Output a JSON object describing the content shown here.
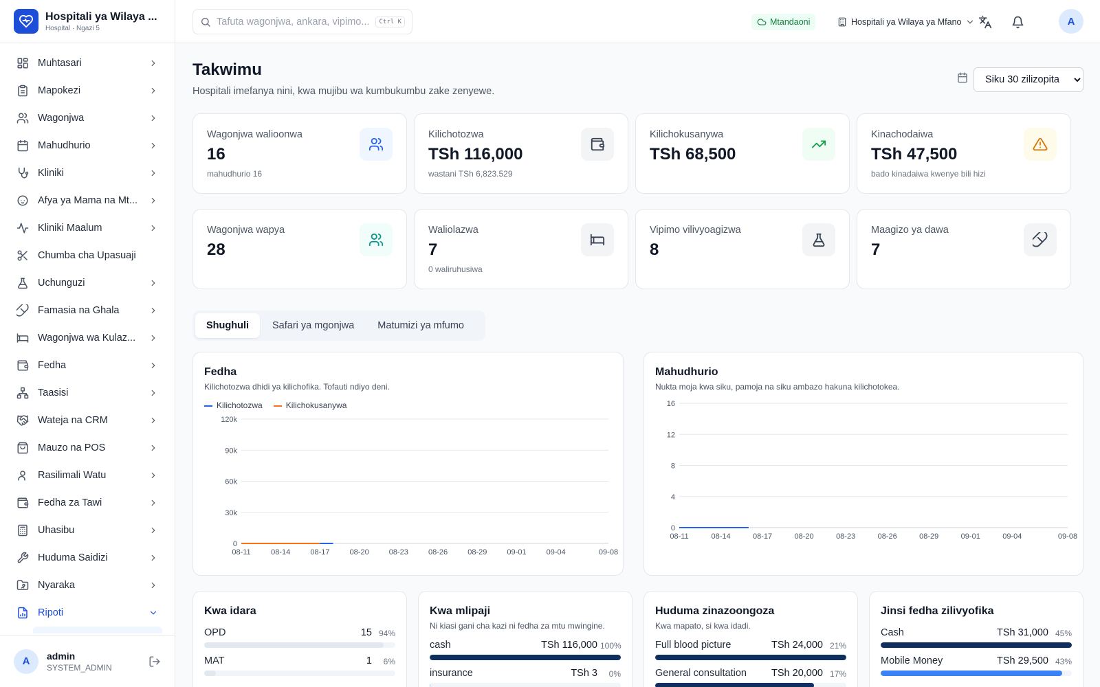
{
  "brand": {
    "name": "Hospitali ya Wilaya ...",
    "sub": "Hospital · Ngazi 5"
  },
  "sidebar": {
    "items": [
      {
        "label": "Muhtasari",
        "icon": "dashboard-icon",
        "chevron": true
      },
      {
        "label": "Mapokezi",
        "icon": "clipboard-icon",
        "chevron": true
      },
      {
        "label": "Wagonjwa",
        "icon": "users-icon",
        "chevron": true
      },
      {
        "label": "Mahudhurio",
        "icon": "calendar-icon",
        "chevron": true
      },
      {
        "label": "Kliniki",
        "icon": "stethoscope-icon",
        "chevron": true
      },
      {
        "label": "Afya ya Mama na Mt...",
        "icon": "baby-icon",
        "chevron": true
      },
      {
        "label": "Kliniki Maalum",
        "icon": "activity-icon",
        "chevron": true
      },
      {
        "label": "Chumba cha Upasuaji",
        "icon": "scissors-icon",
        "chevron": false
      },
      {
        "label": "Uchunguzi",
        "icon": "flask-icon",
        "chevron": true
      },
      {
        "label": "Famasia na Ghala",
        "icon": "pill-icon",
        "chevron": true
      },
      {
        "label": "Wagonjwa wa Kulaz...",
        "icon": "bed-icon",
        "chevron": true
      },
      {
        "label": "Fedha",
        "icon": "wallet-icon",
        "chevron": true
      },
      {
        "label": "Taasisi",
        "icon": "network-icon",
        "chevron": true
      },
      {
        "label": "Wateja na CRM",
        "icon": "handshake-icon",
        "chevron": true
      },
      {
        "label": "Mauzo na POS",
        "icon": "shopping-bag-icon",
        "chevron": true
      },
      {
        "label": "Rasilimali Watu",
        "icon": "user-icon",
        "chevron": true
      },
      {
        "label": "Fedha za Tawi",
        "icon": "wallet-icon",
        "chevron": true
      },
      {
        "label": "Uhasibu",
        "icon": "calculator-icon",
        "chevron": true
      },
      {
        "label": "Huduma Saidizi",
        "icon": "wrench-icon",
        "chevron": true
      },
      {
        "label": "Nyaraka",
        "icon": "folder-icon",
        "chevron": true
      },
      {
        "label": "Ripoti",
        "icon": "report-icon",
        "chevron": true,
        "active": true
      }
    ]
  },
  "user": {
    "initial": "A",
    "name": "admin",
    "role": "SYSTEM_ADMIN"
  },
  "topbar": {
    "search_placeholder": "Tafuta wagonjwa, ankara, vipimo...",
    "shortcut": "Ctrl K",
    "status": "Mtandaoni",
    "facility": "Hospitali ya Wilaya ya Mfano",
    "avatar_initial": "A"
  },
  "page": {
    "title": "Takwimu",
    "subtitle": "Hospitali imefanya nini, kwa mujibu wa kumbukumbu zake zenyewe.",
    "range": "Siku 30 zilizopita",
    "range_options": [
      "Siku 30 zilizopita"
    ]
  },
  "stats": [
    {
      "label": "Wagonjwa walioonwa",
      "value": "16",
      "sub": "mahudhurio 16",
      "icon": "users-icon",
      "color": "#2563eb",
      "bg": "#eff6ff"
    },
    {
      "label": "Kilichotozwa",
      "value": "TSh 116,000",
      "sub": "wastani TSh 6,823.529",
      "icon": "wallet-icon",
      "color": "#374151",
      "bg": "#f3f4f6"
    },
    {
      "label": "Kilichokusanywa",
      "value": "TSh 68,500",
      "sub": "",
      "icon": "trending-up-icon",
      "color": "#16a34a",
      "bg": "#f0fdf4"
    },
    {
      "label": "Kinachodaiwa",
      "value": "TSh 47,500",
      "sub": "bado kinadaiwa kwenye bili hizi",
      "icon": "alert-triangle-icon",
      "color": "#d97706",
      "bg": "#fffbeb"
    },
    {
      "label": "Wagonjwa wapya",
      "value": "28",
      "sub": "",
      "icon": "users-icon",
      "color": "#0d9488",
      "bg": "#f0fdfa"
    },
    {
      "label": "Waliolazwa",
      "value": "7",
      "sub": "0 waliruhusiwa",
      "icon": "bed-icon",
      "color": "#374151",
      "bg": "#f3f4f6"
    },
    {
      "label": "Vipimo vilivyoagizwa",
      "value": "8",
      "sub": "",
      "icon": "flask-icon",
      "color": "#374151",
      "bg": "#f3f4f6"
    },
    {
      "label": "Maagizo ya dawa",
      "value": "7",
      "sub": "",
      "icon": "pill-icon",
      "color": "#374151",
      "bg": "#f3f4f6"
    }
  ],
  "tabs": [
    "Shughuli",
    "Safari ya mgonjwa",
    "Matumizi ya mfumo"
  ],
  "finance_card": {
    "title": "Fedha",
    "desc": "Kilichotozwa dhidi ya kilichofika. Tofauti ndiyo deni."
  },
  "visits_card": {
    "title": "Mahudhurio",
    "desc": "Nukta moja kwa siku, pamoja na siku ambazo hakuna kilichotokea."
  },
  "chart_data": [
    {
      "type": "line",
      "title": "Fedha",
      "x_ticks": [
        "08-11",
        "08-14",
        "08-17",
        "08-20",
        "08-23",
        "08-26",
        "08-29",
        "09-01",
        "09-04",
        "09-08"
      ],
      "y_ticks": [
        "0",
        "30k",
        "60k",
        "90k",
        "120k"
      ],
      "ylim": [
        0,
        120000
      ],
      "xlim": [
        "08-11",
        "09-08"
      ],
      "series": [
        {
          "name": "Kilichotozwa",
          "color": "#2563eb",
          "x": [
            "08-11",
            "08-17",
            "08-18"
          ],
          "values": [
            0,
            0,
            0
          ]
        },
        {
          "name": "Kilichokusanywa",
          "color": "#f97316",
          "x": [
            "08-11",
            "08-17"
          ],
          "values": [
            0,
            0
          ]
        }
      ],
      "legend": "top-left",
      "grid": true
    },
    {
      "type": "line",
      "title": "Mahudhurio",
      "x_ticks": [
        "08-11",
        "08-14",
        "08-17",
        "08-20",
        "08-23",
        "08-26",
        "08-29",
        "09-01",
        "09-04",
        "09-08"
      ],
      "y_ticks": [
        "0",
        "4",
        "8",
        "12",
        "16"
      ],
      "ylim": [
        0,
        16
      ],
      "xlim": [
        "08-11",
        "09-08"
      ],
      "series": [
        {
          "color": "#2563eb",
          "x": [
            "08-11",
            "08-16"
          ],
          "values": [
            0,
            0
          ]
        }
      ],
      "grid": true
    }
  ],
  "departments": {
    "title": "Kwa idara",
    "rows": [
      {
        "label": "OPD",
        "value": "15",
        "pct": "94%",
        "fraction": 0.94,
        "color": "#e2e8f0"
      },
      {
        "label": "MAT",
        "value": "1",
        "pct": "6%",
        "fraction": 0.06,
        "color": "#e2e8f0"
      }
    ]
  },
  "payers": {
    "title": "Kwa mlipaji",
    "desc": "Ni kiasi gani cha kazi ni fedha za mtu mwingine.",
    "rows": [
      {
        "label": "cash",
        "value": "TSh 116,000",
        "pct": "100%",
        "fraction": 1.0,
        "color": "#0f2f5f"
      },
      {
        "label": "insurance",
        "value": "TSh 3",
        "pct": "0%",
        "fraction": 0.005,
        "color": "#93c5fd"
      }
    ]
  },
  "services": {
    "title": "Huduma zinazoongoza",
    "desc": "Kwa mapato, si kwa idadi.",
    "rows": [
      {
        "label": "Full blood picture",
        "value": "TSh 24,000",
        "pct": "21%",
        "fraction": 1.0,
        "color": "#0f2f5f"
      },
      {
        "label": "General consultation",
        "value": "TSh 20,000",
        "pct": "17%",
        "fraction": 0.83,
        "color": "#0f2f5f"
      }
    ]
  },
  "payment_methods": {
    "title": "Jinsi fedha zilivyofika",
    "rows": [
      {
        "label": "Cash",
        "value": "TSh 31,000",
        "pct": "45%",
        "fraction": 1.0,
        "color": "#0f2f5f"
      },
      {
        "label": "Mobile Money",
        "value": "TSh 29,500",
        "pct": "43%",
        "fraction": 0.95,
        "color": "#3b82f6"
      }
    ]
  }
}
